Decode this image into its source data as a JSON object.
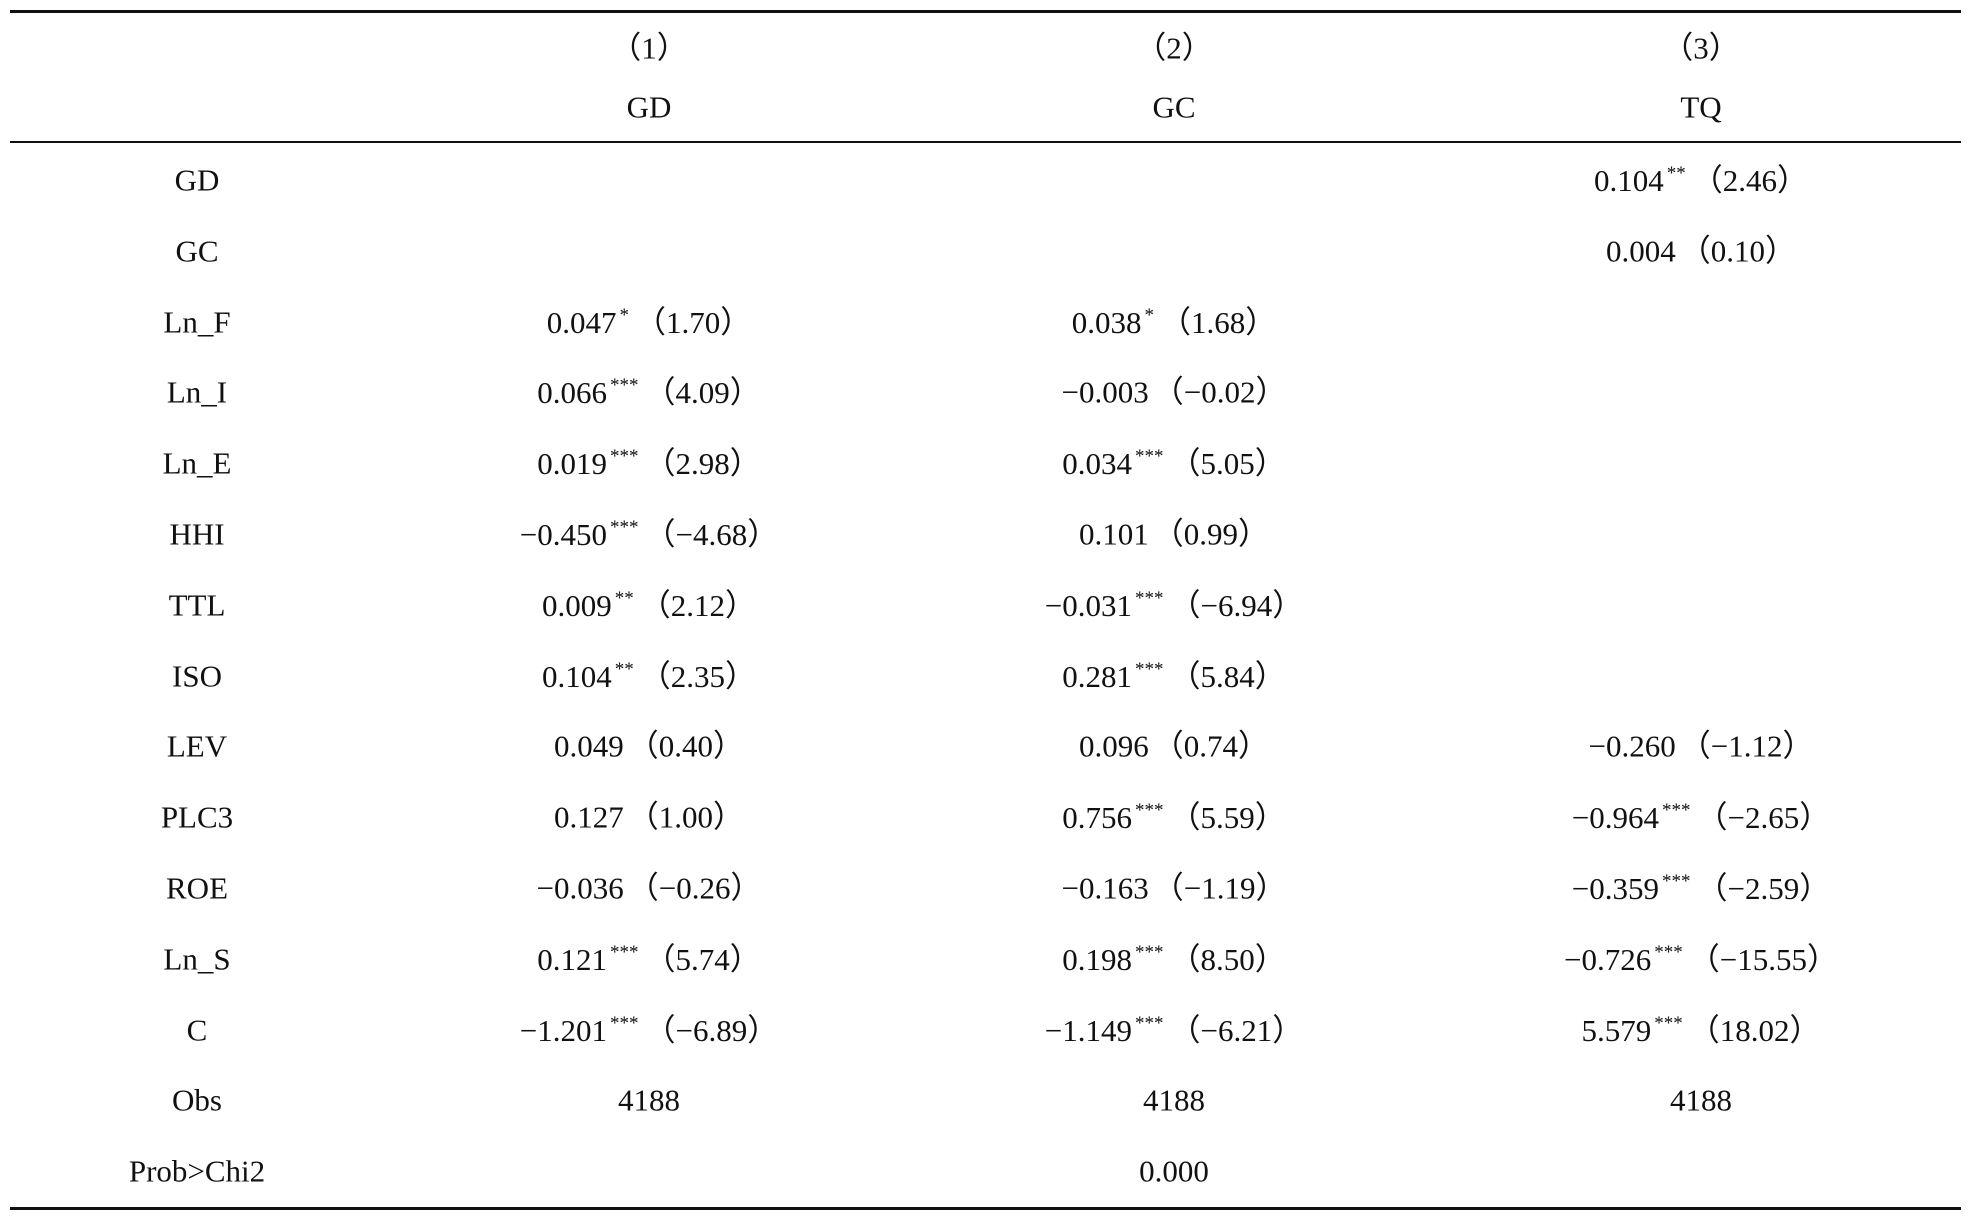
{
  "table": {
    "columns": [
      {
        "number": "（1）",
        "name": "GD"
      },
      {
        "number": "（2）",
        "name": "GC"
      },
      {
        "number": "（3）",
        "name": "TQ"
      }
    ],
    "rows": [
      {
        "label": "GD",
        "cells": [
          null,
          null,
          {
            "coef": "0.104",
            "stars": "**",
            "t": "（2.46）"
          }
        ]
      },
      {
        "label": "GC",
        "cells": [
          null,
          null,
          {
            "coef": "0.004",
            "t": "（0.10）"
          }
        ]
      },
      {
        "label": "Ln_F",
        "cells": [
          {
            "coef": "0.047",
            "stars": "*",
            "t": "（1.70）"
          },
          {
            "coef": "0.038",
            "stars": "*",
            "t": "（1.68）"
          },
          null
        ]
      },
      {
        "label": "Ln_I",
        "cells": [
          {
            "coef": "0.066",
            "stars": "***",
            "t": "（4.09）"
          },
          {
            "coef": "−0.003",
            "t": "（−0.02）"
          },
          null
        ]
      },
      {
        "label": "Ln_E",
        "cells": [
          {
            "coef": "0.019",
            "stars": "***",
            "t": "（2.98）"
          },
          {
            "coef": "0.034",
            "stars": "***",
            "t": "（5.05）"
          },
          null
        ]
      },
      {
        "label": "HHI",
        "cells": [
          {
            "coef": "−0.450",
            "stars": "***",
            "t": "（−4.68）"
          },
          {
            "coef": "0.101",
            "t": "（0.99）"
          },
          null
        ]
      },
      {
        "label": "TTL",
        "cells": [
          {
            "coef": "0.009",
            "stars": "**",
            "t": "（2.12）"
          },
          {
            "coef": "−0.031",
            "stars": "***",
            "t": "（−6.94）"
          },
          null
        ]
      },
      {
        "label": "ISO",
        "cells": [
          {
            "coef": "0.104",
            "stars": "**",
            "t": "（2.35）"
          },
          {
            "coef": "0.281",
            "stars": "***",
            "t": "（5.84）"
          },
          null
        ]
      },
      {
        "label": "LEV",
        "cells": [
          {
            "coef": "0.049",
            "t": "（0.40）"
          },
          {
            "coef": "0.096",
            "t": "（0.74）"
          },
          {
            "coef": "−0.260",
            "t": "（−1.12）"
          }
        ]
      },
      {
        "label": "PLC3",
        "cells": [
          {
            "coef": "0.127",
            "t": "（1.00）"
          },
          {
            "coef": "0.756",
            "stars": "***",
            "t": "（5.59）"
          },
          {
            "coef": "−0.964",
            "stars": "***",
            "t": "（−2.65）"
          }
        ]
      },
      {
        "label": "ROE",
        "cells": [
          {
            "coef": "−0.036",
            "t": "（−0.26）"
          },
          {
            "coef": "−0.163",
            "t": "（−1.19）"
          },
          {
            "coef": "−0.359",
            "stars": "***",
            "t": "（−2.59）"
          }
        ]
      },
      {
        "label": "Ln_S",
        "cells": [
          {
            "coef": "0.121",
            "stars": "***",
            "t": "（5.74）"
          },
          {
            "coef": "0.198",
            "stars": "***",
            "t": "（8.50）"
          },
          {
            "coef": "−0.726",
            "stars": "***",
            "t": "（−15.55）"
          }
        ]
      },
      {
        "label": "C",
        "cells": [
          {
            "coef": "−1.201",
            "stars": "***",
            "t": "（−6.89）"
          },
          {
            "coef": "−1.149",
            "stars": "***",
            "t": "（−6.21）"
          },
          {
            "coef": "5.579",
            "stars": "***",
            "t": "（18.02）"
          }
        ]
      },
      {
        "label": "Obs",
        "cells": [
          "4188",
          "4188",
          "4188"
        ]
      },
      {
        "label": "Prob>Chi2",
        "cells": [
          null,
          "0.000",
          null
        ]
      }
    ]
  }
}
